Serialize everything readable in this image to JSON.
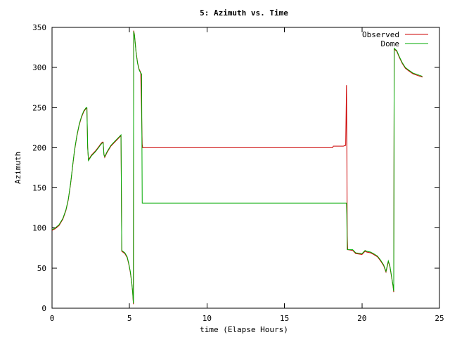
{
  "chart_data": {
    "type": "line",
    "title": "5: Azimuth vs. Time",
    "xlabel": "time (Elapse Hours)",
    "ylabel": "Azimuth",
    "xlim": [
      0,
      25
    ],
    "ylim": [
      0,
      350
    ],
    "xticks": [
      0,
      5,
      10,
      15,
      20,
      25
    ],
    "yticks": [
      0,
      50,
      100,
      150,
      200,
      250,
      300,
      350
    ],
    "grid": false,
    "legend_position": "top-right",
    "series": [
      {
        "name": "Observed",
        "color": "#cc0000",
        "points": [
          [
            0,
            97
          ],
          [
            0.2,
            99
          ],
          [
            0.45,
            103
          ],
          [
            0.7,
            111
          ],
          [
            0.9,
            122
          ],
          [
            1.05,
            135
          ],
          [
            1.2,
            155
          ],
          [
            1.35,
            180
          ],
          [
            1.45,
            196
          ],
          [
            1.6,
            214
          ],
          [
            1.75,
            228
          ],
          [
            1.9,
            238
          ],
          [
            2.05,
            245
          ],
          [
            2.2,
            249
          ],
          [
            2.25,
            249
          ],
          [
            2.3,
            200
          ],
          [
            2.35,
            185
          ],
          [
            2.55,
            191
          ],
          [
            2.8,
            196
          ],
          [
            3.0,
            201
          ],
          [
            3.15,
            205
          ],
          [
            3.25,
            207
          ],
          [
            3.3,
            207
          ],
          [
            3.35,
            192
          ],
          [
            3.4,
            188
          ],
          [
            3.55,
            194
          ],
          [
            3.8,
            202
          ],
          [
            4.1,
            208
          ],
          [
            4.35,
            213
          ],
          [
            4.45,
            215
          ],
          [
            4.5,
            71
          ],
          [
            4.7,
            68
          ],
          [
            4.85,
            63
          ],
          [
            4.95,
            55
          ],
          [
            5.05,
            45
          ],
          [
            5.15,
            30
          ],
          [
            5.2,
            20
          ],
          [
            5.25,
            5
          ],
          [
            5.27,
            346
          ],
          [
            5.32,
            341
          ],
          [
            5.42,
            320
          ],
          [
            5.52,
            306
          ],
          [
            5.62,
            298
          ],
          [
            5.72,
            294
          ],
          [
            5.75,
            271
          ],
          [
            5.77,
            253
          ],
          [
            5.8,
            223
          ],
          [
            5.82,
            204
          ],
          [
            5.85,
            200
          ],
          [
            18.1,
            200
          ],
          [
            18.15,
            202
          ],
          [
            18.8,
            202
          ],
          [
            18.95,
            203
          ],
          [
            19.0,
            278
          ],
          [
            19.03,
            175
          ],
          [
            19.05,
            90
          ],
          [
            19.08,
            73
          ],
          [
            19.4,
            72
          ],
          [
            19.6,
            68
          ],
          [
            20.0,
            67
          ],
          [
            20.1,
            69
          ],
          [
            20.2,
            71
          ],
          [
            20.3,
            70
          ],
          [
            20.55,
            69
          ],
          [
            20.75,
            67
          ],
          [
            21.0,
            64
          ],
          [
            21.2,
            59
          ],
          [
            21.4,
            53
          ],
          [
            21.55,
            45
          ],
          [
            21.7,
            58
          ],
          [
            21.8,
            52
          ],
          [
            21.9,
            40
          ],
          [
            22.0,
            28
          ],
          [
            22.05,
            20
          ],
          [
            22.08,
            323
          ],
          [
            22.25,
            320
          ],
          [
            22.4,
            313
          ],
          [
            22.6,
            305
          ],
          [
            22.8,
            299
          ],
          [
            23.0,
            296
          ],
          [
            23.3,
            292
          ],
          [
            23.6,
            290
          ],
          [
            23.9,
            288
          ]
        ]
      },
      {
        "name": "Dome",
        "color": "#00aa00",
        "points": [
          [
            0,
            98
          ],
          [
            0.2,
            100
          ],
          [
            0.45,
            104
          ],
          [
            0.7,
            112
          ],
          [
            0.9,
            123
          ],
          [
            1.05,
            136
          ],
          [
            1.2,
            156
          ],
          [
            1.35,
            181
          ],
          [
            1.45,
            197
          ],
          [
            1.6,
            215
          ],
          [
            1.75,
            229
          ],
          [
            1.9,
            239
          ],
          [
            2.05,
            246
          ],
          [
            2.2,
            250
          ],
          [
            2.25,
            250
          ],
          [
            2.3,
            201
          ],
          [
            2.35,
            184
          ],
          [
            2.55,
            190
          ],
          [
            2.8,
            195
          ],
          [
            3.0,
            200
          ],
          [
            3.15,
            204
          ],
          [
            3.25,
            206
          ],
          [
            3.3,
            206
          ],
          [
            3.35,
            191
          ],
          [
            3.4,
            189
          ],
          [
            3.55,
            195
          ],
          [
            3.8,
            203
          ],
          [
            4.1,
            209
          ],
          [
            4.35,
            214
          ],
          [
            4.45,
            216
          ],
          [
            4.5,
            72
          ],
          [
            4.7,
            69
          ],
          [
            4.85,
            64
          ],
          [
            4.95,
            56
          ],
          [
            5.05,
            46
          ],
          [
            5.15,
            31
          ],
          [
            5.2,
            21
          ],
          [
            5.25,
            6
          ],
          [
            5.27,
            345
          ],
          [
            5.32,
            340
          ],
          [
            5.42,
            319
          ],
          [
            5.52,
            305
          ],
          [
            5.62,
            297
          ],
          [
            5.72,
            293
          ],
          [
            5.78,
            292
          ],
          [
            5.82,
            131
          ],
          [
            19.0,
            131
          ],
          [
            19.02,
            117
          ],
          [
            19.05,
            73
          ],
          [
            19.4,
            73
          ],
          [
            19.6,
            69
          ],
          [
            20.0,
            68
          ],
          [
            20.1,
            70
          ],
          [
            20.2,
            72
          ],
          [
            20.3,
            71
          ],
          [
            20.55,
            70
          ],
          [
            20.75,
            68
          ],
          [
            21.0,
            65
          ],
          [
            21.2,
            60
          ],
          [
            21.4,
            54
          ],
          [
            21.55,
            46
          ],
          [
            21.7,
            59
          ],
          [
            21.8,
            53
          ],
          [
            21.9,
            41
          ],
          [
            22.0,
            29
          ],
          [
            22.05,
            21
          ],
          [
            22.08,
            324
          ],
          [
            22.25,
            321
          ],
          [
            22.4,
            314
          ],
          [
            22.6,
            306
          ],
          [
            22.8,
            300
          ],
          [
            23.0,
            297
          ],
          [
            23.3,
            293
          ],
          [
            23.6,
            291
          ],
          [
            23.9,
            289
          ]
        ]
      }
    ]
  }
}
